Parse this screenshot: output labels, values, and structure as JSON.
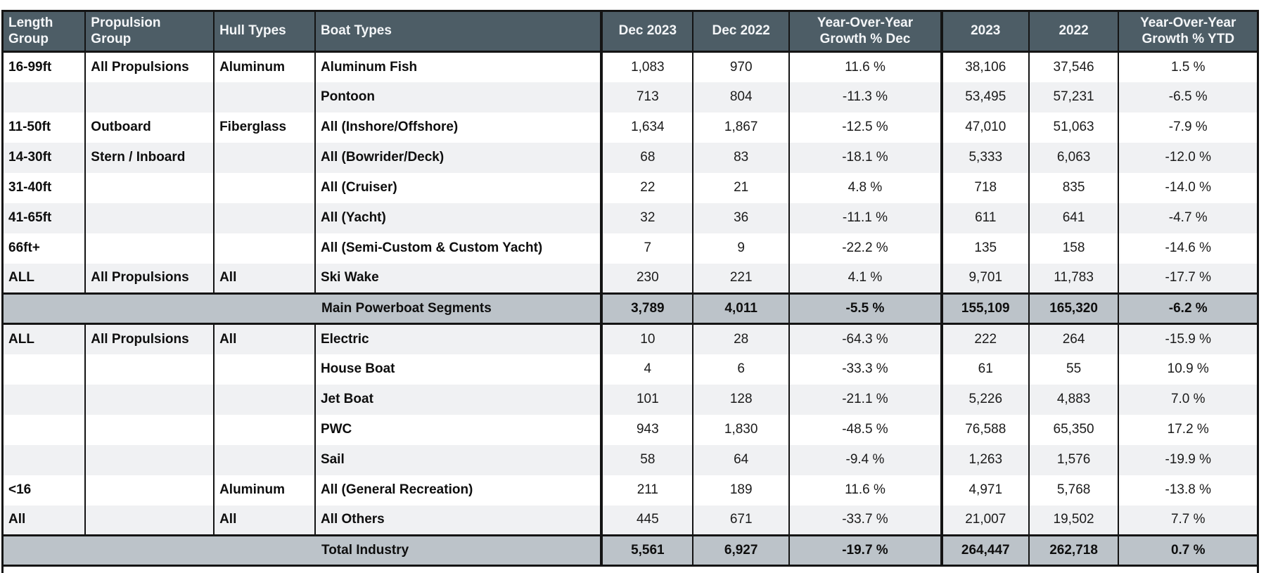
{
  "colors": {
    "header_bg": "#4d5d66",
    "band_bg": "#bcc3c9",
    "stripe": "#f0f1f3",
    "border": "#141414",
    "header_text": "#f4f6f8"
  },
  "table": {
    "columns": [
      {
        "key": "length_group",
        "label": "Length\nGroup"
      },
      {
        "key": "propulsion_group",
        "label": "Propulsion\nGroup"
      },
      {
        "key": "hull_types",
        "label": "Hull Types"
      },
      {
        "key": "boat_types",
        "label": "Boat Types"
      },
      {
        "key": "dec_2023",
        "label": "Dec 2023"
      },
      {
        "key": "dec_2022",
        "label": "Dec 2022"
      },
      {
        "key": "yoy_growth_dec",
        "label": "Year-Over-Year\nGrowth % Dec"
      },
      {
        "key": "total_2023",
        "label": "2023"
      },
      {
        "key": "total_2022",
        "label": "2022"
      },
      {
        "key": "yoy_growth_ytd",
        "label": "Year-Over-Year\nGrowth % YTD"
      }
    ],
    "rows": [
      {
        "type": "data",
        "cells": [
          "16-99ft",
          "All Propulsions",
          "Aluminum",
          "Aluminum Fish",
          "1,083",
          "970",
          "11.6 %",
          "38,106",
          "37,546",
          "1.5 %"
        ]
      },
      {
        "type": "data",
        "cells": [
          "",
          "",
          "",
          "Pontoon",
          "713",
          "804",
          "-11.3 %",
          "53,495",
          "57,231",
          "-6.5 %"
        ]
      },
      {
        "type": "data",
        "cells": [
          "11-50ft",
          "Outboard",
          "Fiberglass",
          "All (Inshore/Offshore)",
          "1,634",
          "1,867",
          "-12.5 %",
          "47,010",
          "51,063",
          "-7.9 %"
        ]
      },
      {
        "type": "data",
        "cells": [
          "14-30ft",
          "Stern / Inboard",
          "",
          "All (Bowrider/Deck)",
          "68",
          "83",
          "-18.1 %",
          "5,333",
          "6,063",
          "-12.0 %"
        ]
      },
      {
        "type": "data",
        "cells": [
          "31-40ft",
          "",
          "",
          "All (Cruiser)",
          "22",
          "21",
          "4.8 %",
          "718",
          "835",
          "-14.0 %"
        ]
      },
      {
        "type": "data",
        "cells": [
          "41-65ft",
          "",
          "",
          "All (Yacht)",
          "32",
          "36",
          "-11.1 %",
          "611",
          "641",
          "-4.7 %"
        ]
      },
      {
        "type": "data",
        "cells": [
          "66ft+",
          "",
          "",
          "All (Semi-Custom & Custom Yacht)",
          "7",
          "9",
          "-22.2 %",
          "135",
          "158",
          "-14.6 %"
        ]
      },
      {
        "type": "data",
        "cells": [
          "ALL",
          "All Propulsions",
          "All",
          "Ski Wake",
          "230",
          "221",
          "4.1 %",
          "9,701",
          "11,783",
          "-17.7 %"
        ]
      },
      {
        "type": "band",
        "label": "Main Powerboat Segments",
        "cells": [
          "3,789",
          "4,011",
          "-5.5 %",
          "155,109",
          "165,320",
          "-6.2 %"
        ]
      },
      {
        "type": "data",
        "cells": [
          "ALL",
          "All Propulsions",
          "All",
          "Electric",
          "10",
          "28",
          "-64.3 %",
          "222",
          "264",
          "-15.9 %"
        ]
      },
      {
        "type": "data",
        "cells": [
          "",
          "",
          "",
          "House Boat",
          "4",
          "6",
          "-33.3 %",
          "61",
          "55",
          "10.9 %"
        ]
      },
      {
        "type": "data",
        "cells": [
          "",
          "",
          "",
          "Jet Boat",
          "101",
          "128",
          "-21.1 %",
          "5,226",
          "4,883",
          "7.0 %"
        ]
      },
      {
        "type": "data",
        "cells": [
          "",
          "",
          "",
          "PWC",
          "943",
          "1,830",
          "-48.5 %",
          "76,588",
          "65,350",
          "17.2 %"
        ]
      },
      {
        "type": "data",
        "cells": [
          "",
          "",
          "",
          "Sail",
          "58",
          "64",
          "-9.4 %",
          "1,263",
          "1,576",
          "-19.9 %"
        ]
      },
      {
        "type": "data",
        "cells": [
          "<16",
          "",
          "Aluminum",
          "All (General Recreation)",
          "211",
          "189",
          "11.6 %",
          "4,971",
          "5,768",
          "-13.8 %"
        ]
      },
      {
        "type": "data",
        "cells": [
          "All",
          "",
          "All",
          "All Others",
          "445",
          "671",
          "-33.7 %",
          "21,007",
          "19,502",
          "7.7 %"
        ]
      },
      {
        "type": "band",
        "label": "Total Industry",
        "cells": [
          "5,561",
          "6,927",
          "-19.7 %",
          "264,447",
          "262,718",
          "0.7 %"
        ]
      }
    ]
  }
}
